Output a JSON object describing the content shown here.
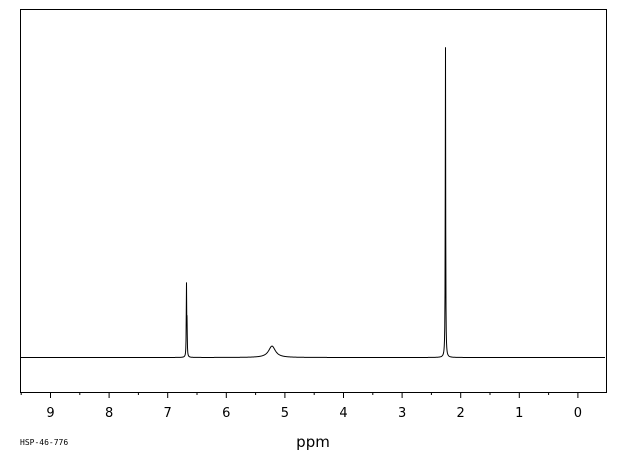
{
  "chart_data": {
    "type": "line",
    "title": "",
    "xlabel": "ppm",
    "ylabel": "",
    "xlim": [
      9.5,
      -0.5
    ],
    "x_reversed": true,
    "grid": false,
    "legend": "none",
    "x_ticks": [
      "9",
      "8",
      "7",
      "6",
      "5",
      "4",
      "3",
      "2",
      "1",
      "0"
    ],
    "peaks": [
      {
        "ppm": 6.68,
        "height": 0.23,
        "width": 0.004,
        "shape": "sharp",
        "label": "doublet-main"
      },
      {
        "ppm": 6.67,
        "height": 0.1,
        "width": 0.004,
        "shape": "sharp",
        "label": "doublet-shoulder"
      },
      {
        "ppm": 5.22,
        "height": 0.036,
        "width": 0.07,
        "shape": "broad",
        "label": "broad-exchangeable"
      },
      {
        "ppm": 2.26,
        "height": 1.0,
        "width": 0.004,
        "shape": "sharp",
        "label": "methyl-singlet"
      }
    ],
    "baseline": 0,
    "ylim": [
      -0.12,
      1.03
    ]
  },
  "footer": {
    "catalog_id": "HSP-46-776"
  },
  "colors": {
    "line": "#000000",
    "frame": "#000000",
    "background": "#ffffff"
  }
}
